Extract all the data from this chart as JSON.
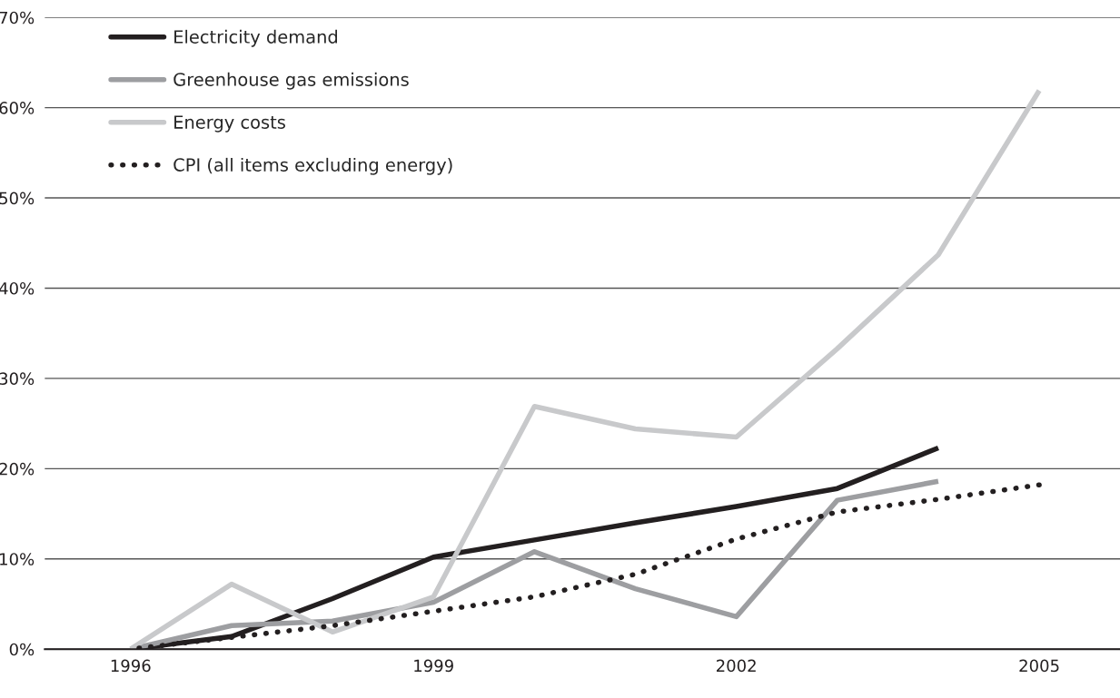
{
  "chart_data": {
    "type": "line",
    "x": [
      1996,
      1997,
      1998,
      1999,
      2000,
      2001,
      2002,
      2003,
      2004,
      2005
    ],
    "series": [
      {
        "name": "Electricity demand",
        "color": "#231f20",
        "line_style": "solid",
        "values": [
          0,
          1.4,
          5.6,
          10.2,
          12.1,
          14.0,
          15.8,
          17.8,
          22.3,
          null
        ]
      },
      {
        "name": "Greenhouse gas emissions",
        "color": "#9d9ea1",
        "line_style": "solid",
        "values": [
          0,
          2.6,
          3.1,
          5.2,
          10.8,
          6.7,
          3.6,
          16.5,
          18.6,
          null
        ]
      },
      {
        "name": "Energy costs",
        "color": "#c8c9cb",
        "line_style": "solid",
        "values": [
          0,
          7.2,
          1.9,
          5.8,
          26.9,
          24.4,
          23.5,
          33.3,
          43.7,
          61.9
        ]
      },
      {
        "name": "CPI (all items excluding energy)",
        "color": "#231f20",
        "line_style": "dotted",
        "values": [
          0,
          1.3,
          2.6,
          4.2,
          5.8,
          8.3,
          12.2,
          15.2,
          16.6,
          18.2
        ]
      }
    ],
    "xlim": [
      1995.15,
      2005.8
    ],
    "xticks": [
      1996,
      1999,
      2002,
      2005
    ],
    "ylim": [
      0,
      70
    ],
    "yticks": [
      {
        "value": 0,
        "label": "0%"
      },
      {
        "value": 10,
        "label": "10%"
      },
      {
        "value": 20,
        "label": "20%"
      },
      {
        "value": 30,
        "label": "30%"
      },
      {
        "value": 40,
        "label": "40%"
      },
      {
        "value": 50,
        "label": "50%"
      },
      {
        "value": 60,
        "label": "60%"
      },
      {
        "value": 70,
        "label": "70%"
      }
    ],
    "grid": "y",
    "legend": "top left",
    "marker": "none"
  }
}
